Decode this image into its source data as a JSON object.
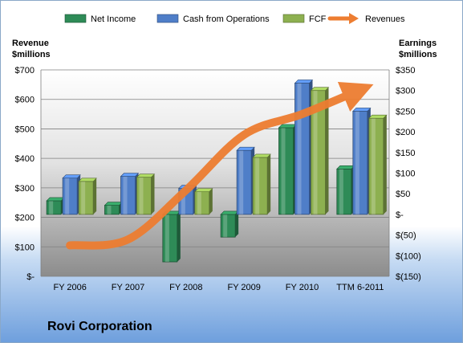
{
  "chart_data": {
    "type": "bar",
    "company": "Rovi Corporation",
    "categories": [
      "FY 2006",
      "FY 2007",
      "FY 2008",
      "FY 2009",
      "FY 2010",
      "TTM 6-2011"
    ],
    "series": [
      {
        "name": "Net Income",
        "axis": "right",
        "color": "#2e8b57",
        "values": [
          33,
          22,
          -115,
          -55,
          210,
          110
        ]
      },
      {
        "name": "Cash from Operations",
        "axis": "right",
        "color": "#4f7ec8",
        "values": [
          88,
          92,
          63,
          155,
          318,
          250
        ]
      },
      {
        "name": "FCF",
        "axis": "right",
        "color": "#8db050",
        "values": [
          80,
          90,
          55,
          138,
          300,
          233
        ]
      },
      {
        "name": "Revenues",
        "axis": "left",
        "type": "line",
        "color": "#ed7d31",
        "values": [
          105,
          125,
          292,
          480,
          550,
          632
        ]
      }
    ],
    "left_axis": {
      "label_line1": "Revenue",
      "label_line2": "$millions",
      "ylim": [
        0,
        700
      ],
      "ticks": [
        "$700",
        "$600",
        "$500",
        "$400",
        "$300",
        "$200",
        "$100",
        "$-"
      ]
    },
    "right_axis": {
      "label_line1": "Earnings",
      "label_line2": "$millions",
      "ylim": [
        -150,
        350
      ],
      "ticks": [
        "$350",
        "$300",
        "$250",
        "$200",
        "$150",
        "$100",
        "$50",
        "$-",
        "$(50)",
        "$(100)",
        "$(150)"
      ]
    },
    "legend_position": "top",
    "grid": true
  }
}
